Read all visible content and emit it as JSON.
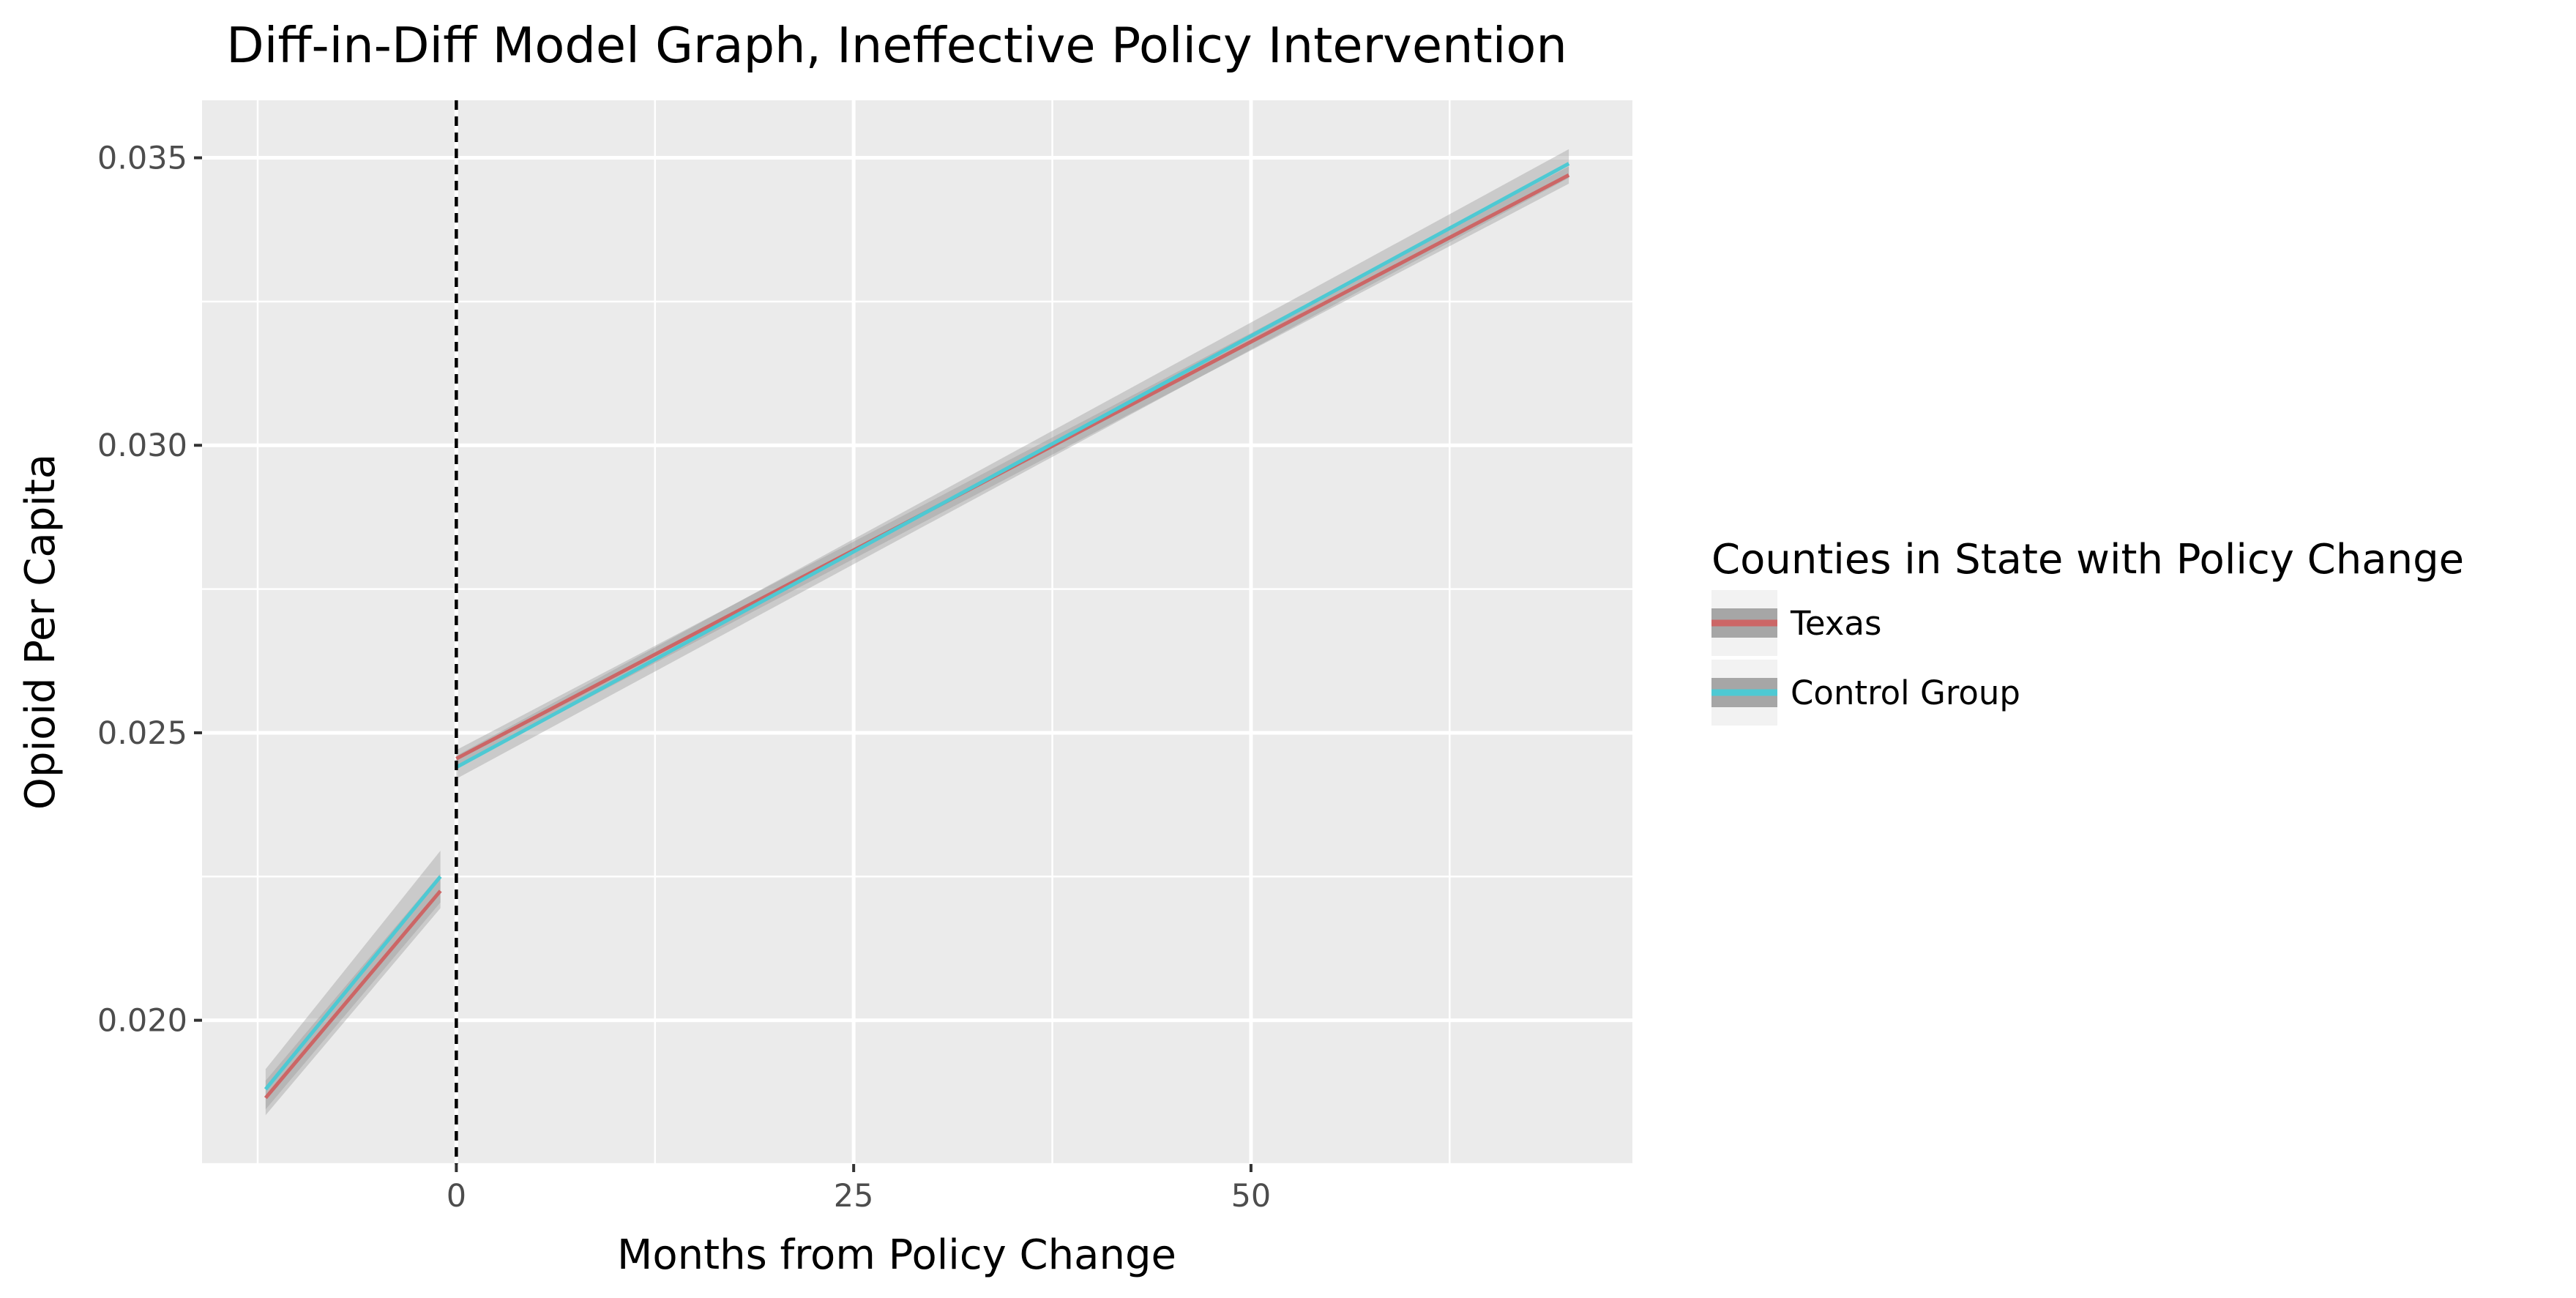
{
  "chart_data": {
    "type": "line",
    "title": "Diff-in-Diff Model Graph, Ineffective Policy Intervention",
    "xlabel": "Months from Policy Change",
    "ylabel": "Opioid Per Capita",
    "xlim": [
      -16,
      74
    ],
    "ylim": [
      0.0175,
      0.036
    ],
    "x_ticks": [
      0,
      25,
      50
    ],
    "x_tick_labels": [
      "0",
      "25",
      "50"
    ],
    "y_ticks": [
      0.02,
      0.025,
      0.03,
      0.035
    ],
    "y_tick_labels": [
      "0.020",
      "0.025",
      "0.030",
      "0.035"
    ],
    "grid": true,
    "vline": {
      "x": 0,
      "style": "dashed",
      "color": "#000000"
    },
    "legend": {
      "title": "Counties in State with Policy Change",
      "position": "right",
      "items": [
        "Texas",
        "Control Group"
      ]
    },
    "series": [
      {
        "name": "Texas",
        "color": "#cc6666",
        "segments": [
          {
            "x": [
              -12,
              -1
            ],
            "y": [
              0.01865,
              0.02225
            ],
            "ci": [
              0.0003,
              0.0003
            ]
          },
          {
            "x": [
              0,
              70
            ],
            "y": [
              0.02455,
              0.0347
            ],
            "ci": [
              0.00015,
              0.00015
            ]
          }
        ]
      },
      {
        "name": "Control Group",
        "color": "#4ec9d3",
        "segments": [
          {
            "x": [
              -12,
              -1
            ],
            "y": [
              0.0188,
              0.0225
            ],
            "ci": [
              0.00035,
              0.00045
            ]
          },
          {
            "x": [
              0,
              70
            ],
            "y": [
              0.0244,
              0.0349
            ],
            "ci": [
              0.0002,
              0.00025
            ]
          }
        ]
      }
    ]
  }
}
